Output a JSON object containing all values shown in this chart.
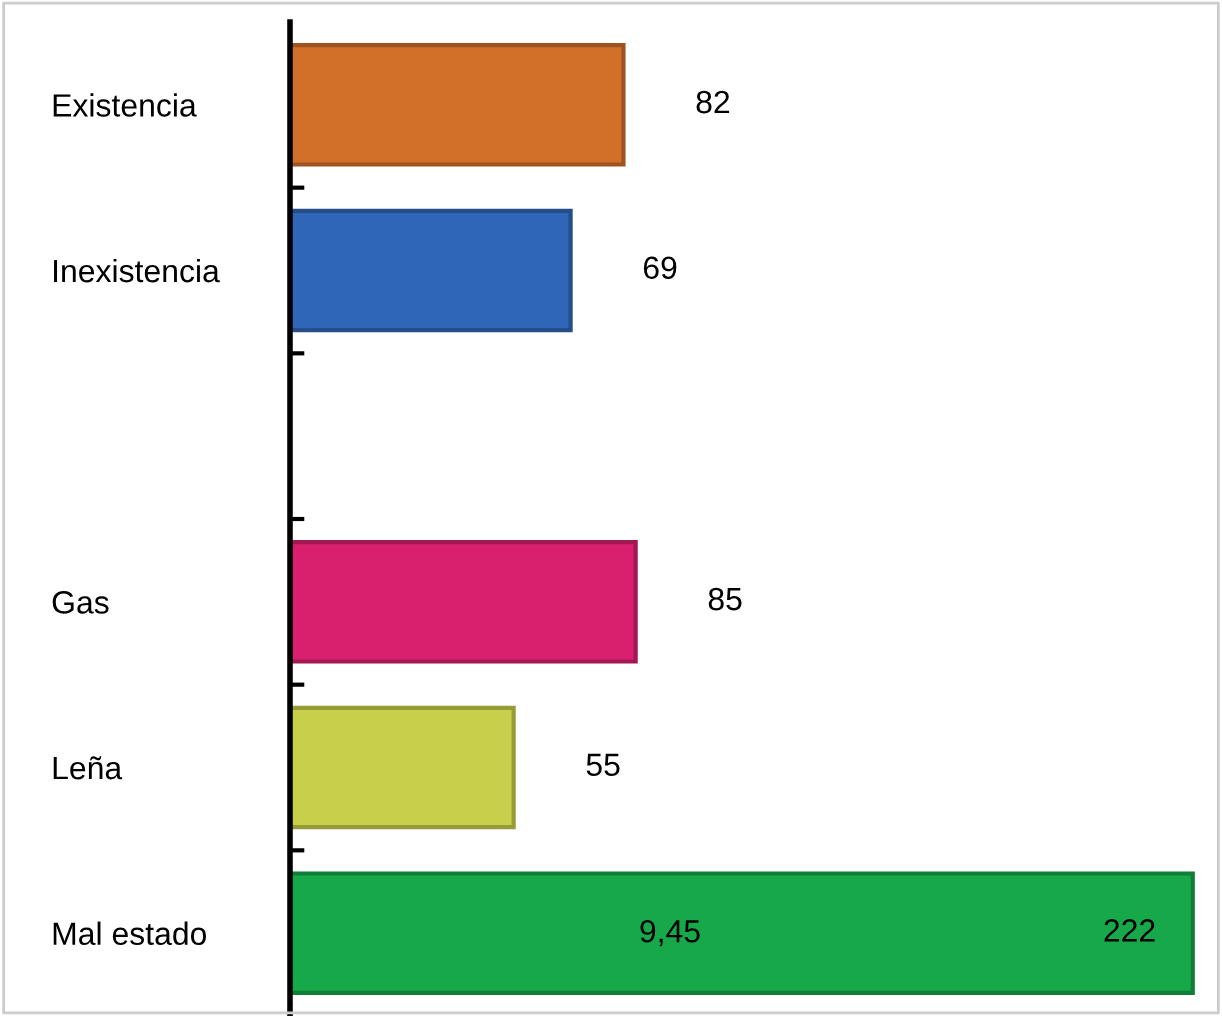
{
  "chart_data": {
    "type": "bar",
    "orientation": "horizontal",
    "categories": [
      "Existencia",
      "Inexistencia",
      null,
      "Gas",
      "Leña",
      "Mal estado"
    ],
    "values": [
      82,
      69,
      null,
      85,
      55,
      222
    ],
    "colors": [
      "#d2702a",
      "#3066b8",
      "#888888",
      "#d8206e",
      "#c8cf4a",
      "#17a84a"
    ],
    "tick_labels": "y",
    "data_labels": true,
    "grid": false,
    "legend": false,
    "annotations": [
      "9,45"
    ]
  }
}
